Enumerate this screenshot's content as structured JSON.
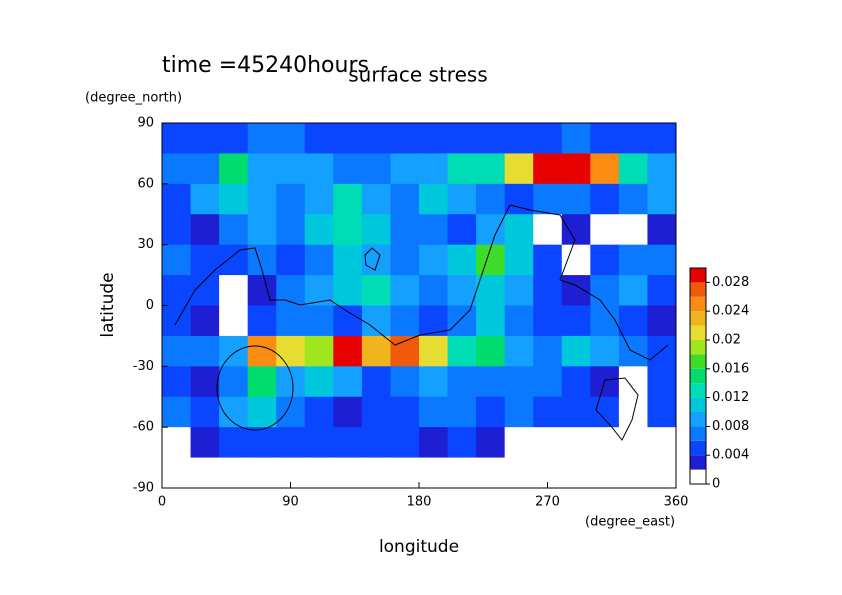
{
  "chart_data": {
    "type": "contour",
    "title": "surface stress",
    "subtitle": "time =45240hours",
    "xlabel": "longitude",
    "xunit": "(degree_east)",
    "ylabel": "latitude",
    "yunit": "(degree_north)",
    "xlim": [
      0,
      360
    ],
    "xticks": [
      0,
      90,
      180,
      270,
      360
    ],
    "ylim": [
      -90,
      90
    ],
    "yticks": [
      -90,
      -60,
      -30,
      0,
      30,
      60,
      90
    ],
    "x": [
      10,
      30,
      50,
      70,
      90,
      110,
      130,
      150,
      170,
      190,
      210,
      230,
      250,
      270,
      290,
      310,
      330,
      350
    ],
    "y": [
      82.5,
      67.5,
      52.5,
      37.5,
      22.5,
      7.5,
      -7.5,
      -22.5,
      -37.5,
      -52.5,
      -67.5,
      -82.5
    ],
    "z": [
      [
        0.004,
        0.004,
        0.004,
        0.006,
        0.006,
        0.004,
        0.004,
        0.004,
        0.004,
        0.004,
        0.004,
        0.004,
        0.004,
        0.004,
        0.006,
        0.004,
        0.004,
        0.004
      ],
      [
        0.006,
        0.006,
        0.014,
        0.008,
        0.008,
        0.008,
        0.006,
        0.006,
        0.008,
        0.008,
        0.012,
        0.012,
        0.02,
        0.03,
        0.03,
        0.024,
        0.012,
        0.008
      ],
      [
        0.004,
        0.008,
        0.01,
        0.008,
        0.006,
        0.008,
        0.012,
        0.008,
        0.006,
        0.01,
        0.008,
        0.006,
        0.004,
        0.006,
        0.006,
        0.004,
        0.006,
        0.008
      ],
      [
        0.004,
        0.002,
        0.006,
        0.008,
        0.006,
        0.01,
        0.012,
        0.01,
        0.006,
        0.006,
        0.004,
        0.008,
        0.01,
        0,
        0.002,
        0,
        0,
        0.002
      ],
      [
        0.006,
        0.004,
        0.004,
        0.006,
        0.004,
        0.006,
        0.01,
        0.008,
        0.006,
        0.008,
        0.01,
        0.016,
        0.01,
        0.004,
        0,
        0.004,
        0.006,
        0.006
      ],
      [
        0.004,
        0.004,
        0,
        0.002,
        0.006,
        0.008,
        0.01,
        0.012,
        0.008,
        0.006,
        0.008,
        0.01,
        0.008,
        0.004,
        0.002,
        0.006,
        0.008,
        0.004
      ],
      [
        0.004,
        0.002,
        0,
        0.004,
        0.006,
        0.006,
        0.004,
        0.008,
        0.006,
        0.004,
        0.006,
        0.01,
        0.006,
        0.004,
        0.004,
        0.006,
        0.004,
        0.002
      ],
      [
        0.006,
        0.006,
        0.008,
        0.024,
        0.02,
        0.018,
        0.028,
        0.022,
        0.026,
        0.02,
        0.012,
        0.014,
        0.008,
        0.006,
        0.01,
        0.008,
        0.006,
        0.004
      ],
      [
        0.004,
        0.002,
        0.006,
        0.014,
        0.008,
        0.01,
        0.008,
        0.004,
        0.006,
        0.008,
        0.006,
        0.006,
        0.006,
        0.006,
        0.004,
        0.002,
        0,
        0.004
      ],
      [
        0.006,
        0.004,
        0.008,
        0.01,
        0.006,
        0.004,
        0.002,
        0.004,
        0.004,
        0.006,
        0.006,
        0.004,
        0.006,
        0.004,
        0.004,
        0.004,
        0,
        0.004
      ],
      [
        0,
        0.002,
        0.004,
        0.004,
        0.004,
        0.004,
        0.004,
        0.004,
        0.004,
        0.002,
        0.004,
        0.002,
        0,
        0,
        0,
        0,
        0,
        0
      ],
      [
        0,
        0,
        0,
        0,
        0,
        0,
        0,
        0,
        0,
        0,
        0,
        0,
        0,
        0,
        0,
        0,
        0,
        0
      ]
    ],
    "levels": [
      0,
      0.002,
      0.004,
      0.006,
      0.008,
      0.01,
      0.012,
      0.014,
      0.016,
      0.018,
      0.02,
      0.022,
      0.024,
      0.026,
      0.028,
      0.03
    ],
    "colors": [
      "#ffffff",
      "#1e1ed2",
      "#0a46ff",
      "#0a78ff",
      "#14a0ff",
      "#00c8dc",
      "#00dcb4",
      "#00dc6e",
      "#3cdc28",
      "#a0e61e",
      "#e6dc32",
      "#f0b41e",
      "#fa8c14",
      "#f05a0a",
      "#e60000"
    ],
    "cticks": [
      0,
      0.004,
      0.008,
      0.012,
      0.016,
      0.02,
      0.024,
      0.028
    ]
  }
}
